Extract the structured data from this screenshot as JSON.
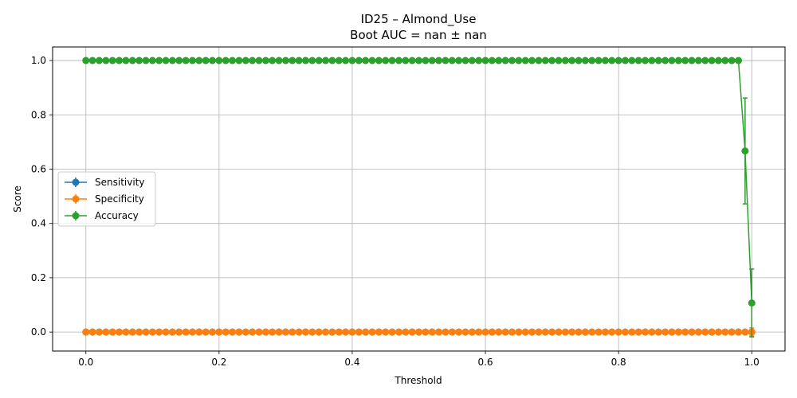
{
  "chart_data": {
    "type": "line",
    "title": "ID25 – Almond_Use",
    "subtitle": "Boot AUC = nan ± nan",
    "xlabel": "Threshold",
    "ylabel": "Score",
    "xlim": [
      -0.05,
      1.05
    ],
    "ylim": [
      -0.07,
      1.05
    ],
    "xticks": [
      0.0,
      0.2,
      0.4,
      0.6,
      0.8,
      1.0
    ],
    "xtick_labels": [
      "0.0",
      "0.2",
      "0.4",
      "0.6",
      "0.8",
      "1.0"
    ],
    "yticks": [
      0.0,
      0.2,
      0.4,
      0.6,
      0.8,
      1.0
    ],
    "ytick_labels": [
      "0.0",
      "0.2",
      "0.4",
      "0.6",
      "0.8",
      "1.0"
    ],
    "grid": true,
    "legend_position": "center-left",
    "x": {
      "start": 0.0,
      "stop": 1.0,
      "count": 101
    },
    "series": [
      {
        "name": "Sensitivity",
        "color": "#1f77b4",
        "const": 0.0,
        "last_values": [],
        "last_errors": []
      },
      {
        "name": "Specificity",
        "color": "#ff7f0e",
        "const": 0.0,
        "last_values": [
          0.0
        ],
        "last_errors": [
          0.015
        ]
      },
      {
        "name": "Accuracy",
        "color": "#2ca02c",
        "const": 1.0,
        "last_values": [
          0.667,
          0.107
        ],
        "last_errors": [
          0.195,
          0.125
        ]
      }
    ]
  }
}
